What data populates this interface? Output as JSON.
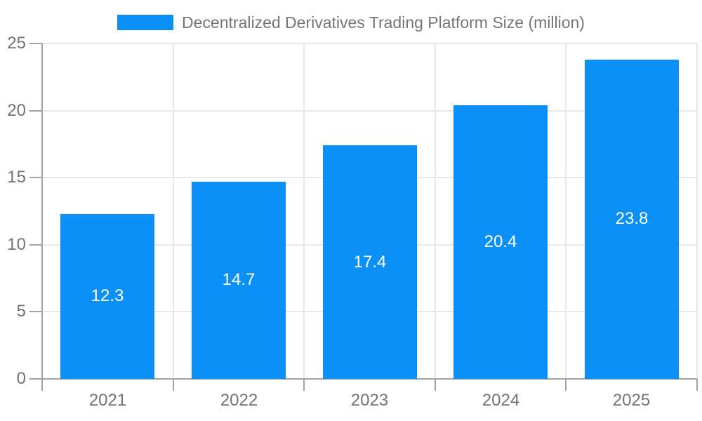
{
  "chart_data": {
    "type": "bar",
    "title": "Decentralized Derivatives Trading Platform Size (million)",
    "categories": [
      "2021",
      "2022",
      "2023",
      "2024",
      "2025"
    ],
    "values": [
      12.3,
      14.7,
      17.4,
      20.4,
      23.8
    ],
    "value_labels": [
      "12.3",
      "14.7",
      "17.4",
      "20.4",
      "23.8"
    ],
    "xlabel": "",
    "ylabel": "",
    "ylim": [
      0,
      25
    ],
    "ytick_interval": 5,
    "ytick_labels": [
      "0",
      "5",
      "10",
      "15",
      "20",
      "25"
    ],
    "grid": true,
    "legend_position": "top",
    "colors": {
      "bar": "#0a90f6",
      "bar_label": "#ffffff",
      "grid_line": "#e7e7e7",
      "axis_line": "#a3a3a3",
      "tick_label": "#737373",
      "title": "#757575",
      "background": "#ffffff"
    }
  }
}
